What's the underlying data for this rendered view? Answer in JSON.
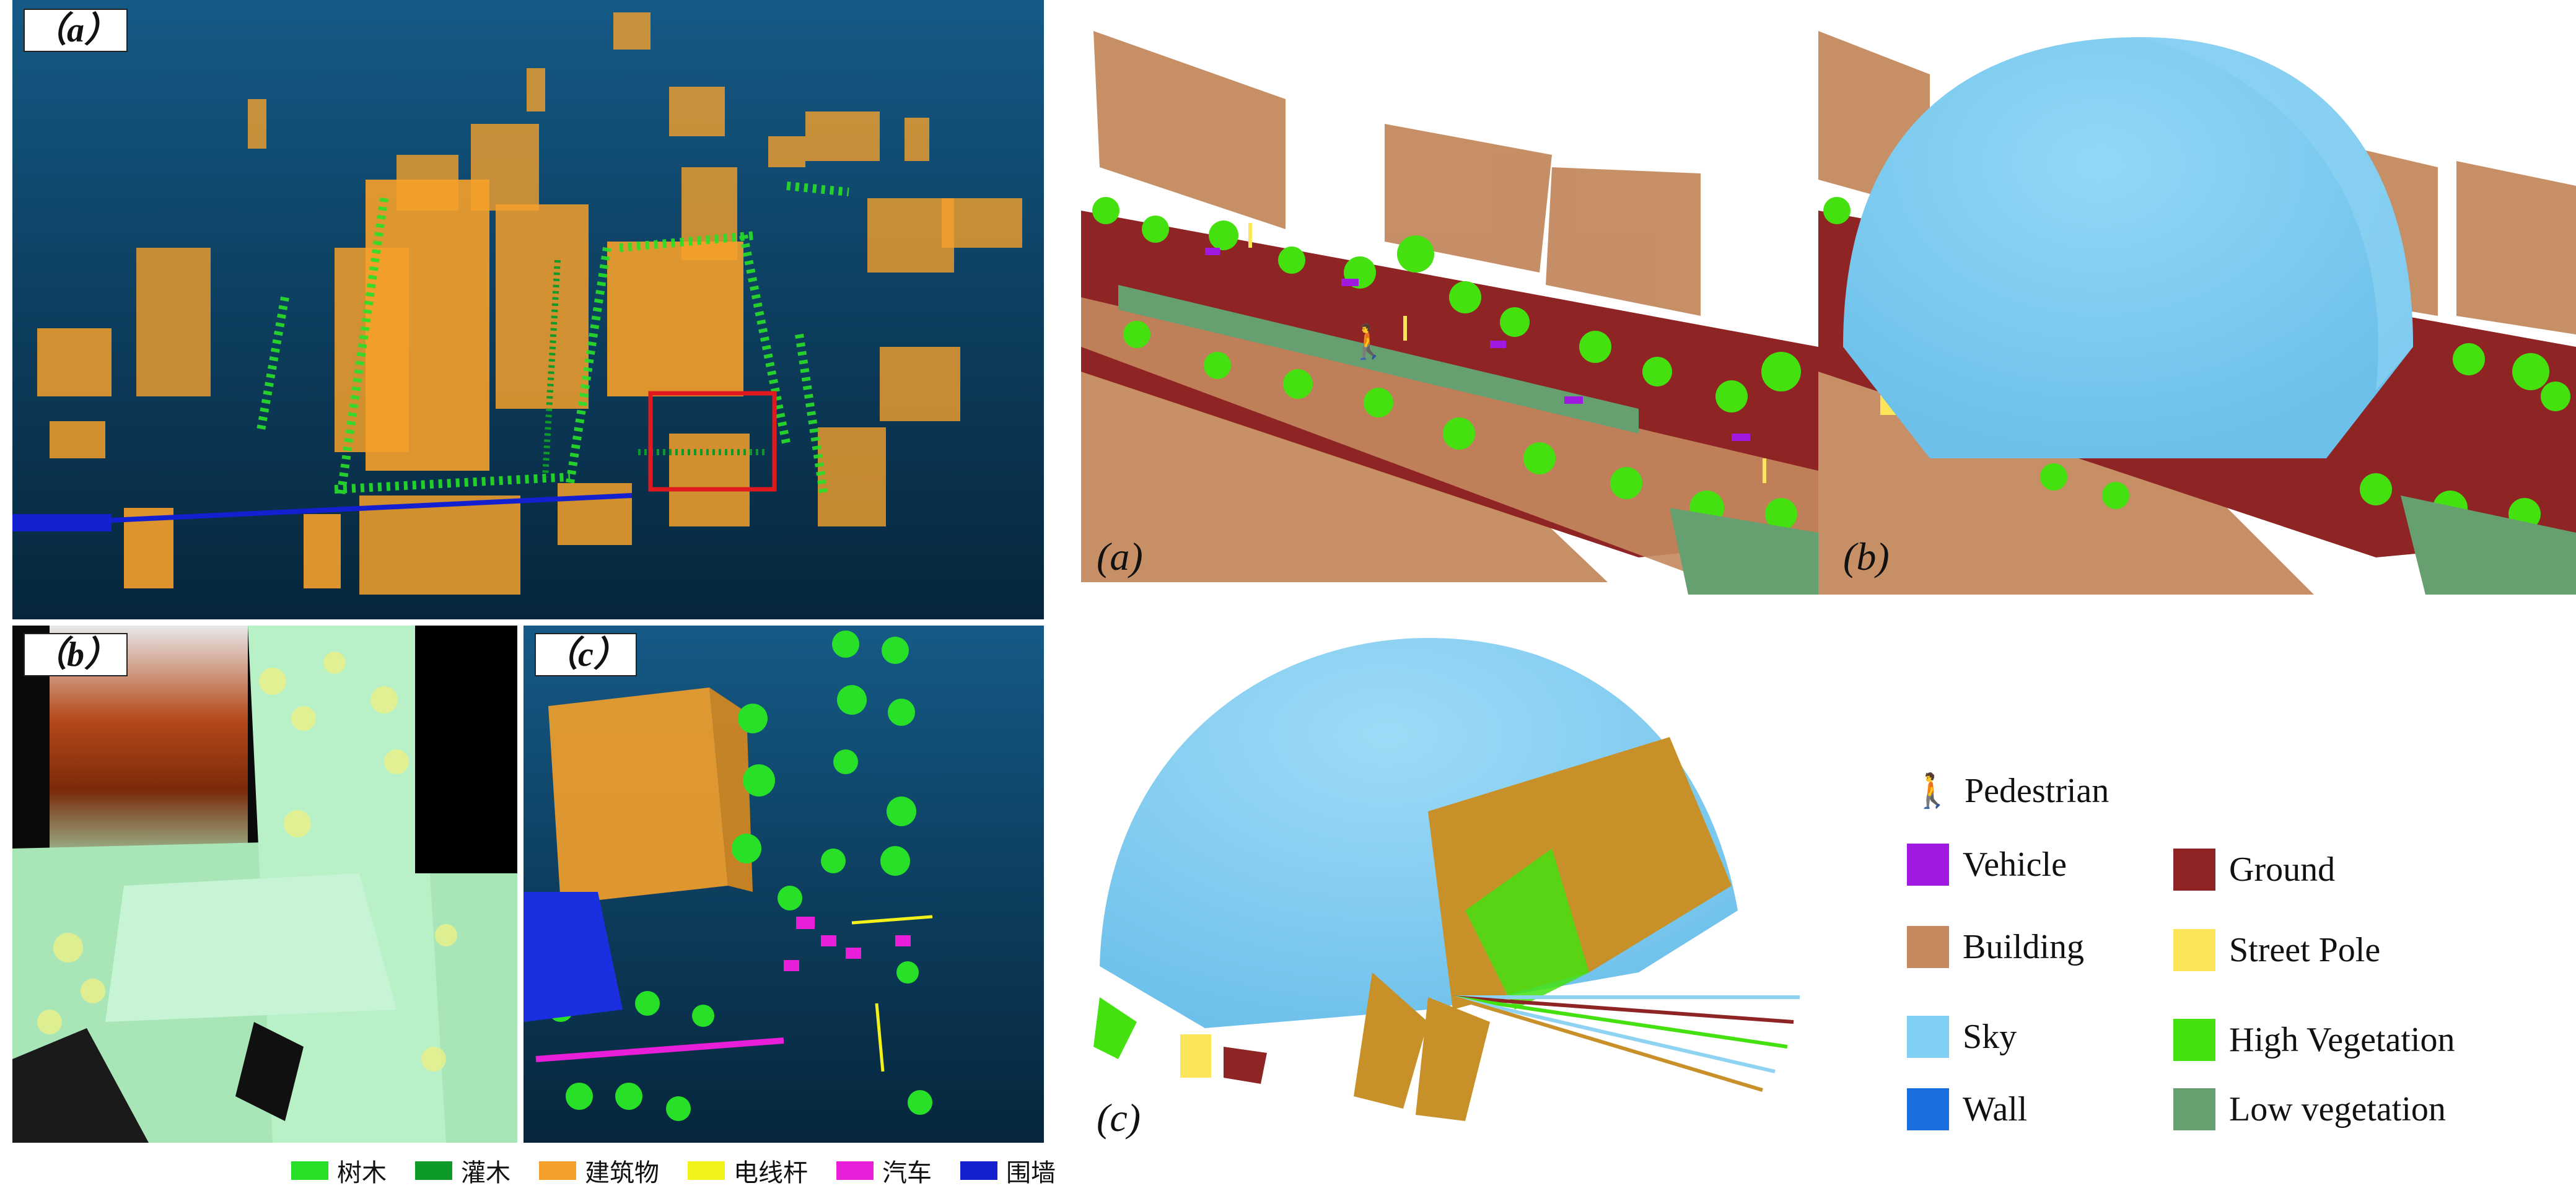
{
  "left_figure": {
    "panel_a_tag": "（a）",
    "panel_b_tag": "（b）",
    "panel_c_tag": "（c）",
    "legend": [
      {
        "label": "树木",
        "color": "#28e028"
      },
      {
        "label": "灌木",
        "color": "#0e9a28"
      },
      {
        "label": "建筑物",
        "color": "#f5a02a"
      },
      {
        "label": "电线杆",
        "color": "#f2f21a"
      },
      {
        "label": "汽车",
        "color": "#e81ed8"
      },
      {
        "label": "围墙",
        "color": "#1220d0"
      }
    ]
  },
  "right_figure": {
    "label_a": "(a)",
    "label_b": "(b)",
    "label_c": "(c)",
    "legend": {
      "pedestrian": {
        "label": "Pedestrian",
        "icon": "pedestrian-icon"
      },
      "vehicle": {
        "label": "Vehicle",
        "color": "#a019e0"
      },
      "building": {
        "label": "Building",
        "color": "#c4895e"
      },
      "sky": {
        "label": "Sky",
        "color": "#7fd0f2"
      },
      "wall": {
        "label": "Wall",
        "color": "#1a6ee0"
      },
      "ground": {
        "label": "Ground",
        "color": "#8e2424"
      },
      "street_pole": {
        "label": "Street Pole",
        "color": "#fce558"
      },
      "high_vegetation": {
        "label": "High Vegetation",
        "color": "#44e010"
      },
      "low_vegetation": {
        "label": "Low vegetation",
        "color": "#66a070"
      }
    }
  }
}
